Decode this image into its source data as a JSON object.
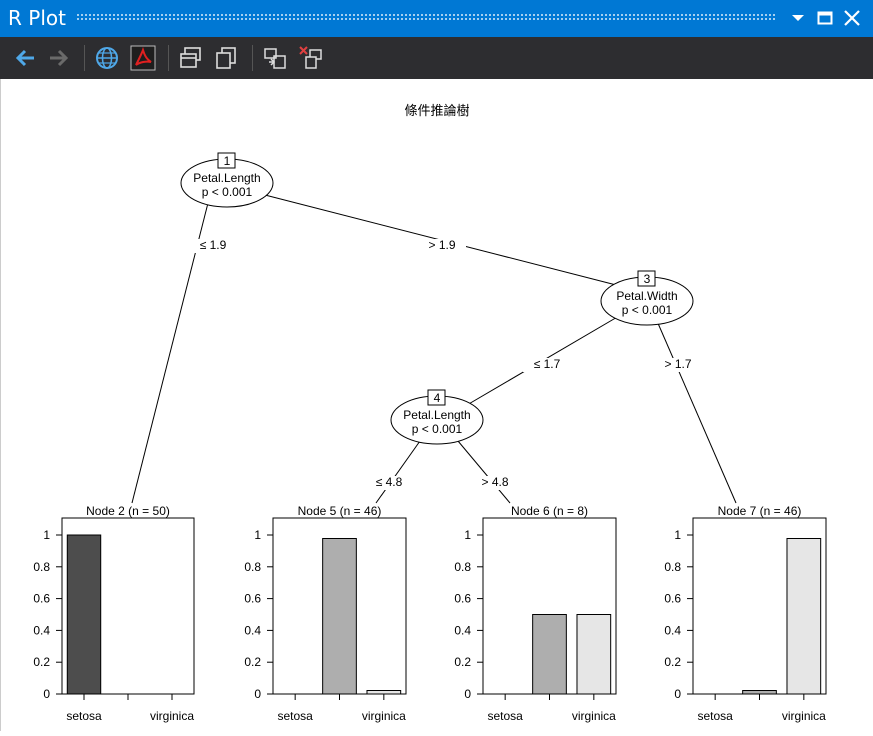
{
  "window": {
    "title": "R Plot"
  },
  "toolbar": {
    "buttons": [
      {
        "name": "back-button",
        "icon": "arrow-left-icon"
      },
      {
        "name": "forward-button",
        "icon": "arrow-right-icon"
      },
      {
        "name": "open-browser-button",
        "icon": "globe-icon"
      },
      {
        "name": "export-pdf-button",
        "icon": "pdf-icon"
      },
      {
        "name": "copy-plot-button",
        "icon": "copy-window-icon"
      },
      {
        "name": "clone-plot-button",
        "icon": "duplicate-icon"
      },
      {
        "name": "copy-to-history-button",
        "icon": "move-icon"
      },
      {
        "name": "clear-plot-button",
        "icon": "clear-icon"
      }
    ]
  },
  "colors": {
    "titlebar": "#0078d4",
    "toolbar": "#2d2d30",
    "setosa": "#4d4d4d",
    "versicolor": "#aeaeae",
    "virginica": "#e6e6e6"
  },
  "chart_data": {
    "type": "tree",
    "title": "條件推論樹",
    "inner_nodes": [
      {
        "id": "1",
        "label": "1",
        "variable": "Petal.Length",
        "pvalue": "p < 0.001"
      },
      {
        "id": "3",
        "label": "3",
        "variable": "Petal.Width",
        "pvalue": "p < 0.001"
      },
      {
        "id": "4",
        "label": "4",
        "variable": "Petal.Length",
        "pvalue": "p < 0.001"
      }
    ],
    "edges": [
      {
        "from": "1",
        "to": "2",
        "label": "≤ 1.9"
      },
      {
        "from": "1",
        "to": "3",
        "label": "> 1.9"
      },
      {
        "from": "3",
        "to": "4",
        "label": "≤ 1.7"
      },
      {
        "from": "3",
        "to": "7",
        "label": "> 1.7"
      },
      {
        "from": "4",
        "to": "5",
        "label": "≤ 4.8"
      },
      {
        "from": "4",
        "to": "6",
        "label": "> 4.8"
      }
    ],
    "terminal_nodes": [
      {
        "id": "2",
        "title": "Node 2 (n = 50)",
        "values": [
          1,
          0,
          0
        ]
      },
      {
        "id": "5",
        "title": "Node 5 (n = 46)",
        "values": [
          0,
          0.978,
          0.022
        ]
      },
      {
        "id": "6",
        "title": "Node 6 (n = 8)",
        "values": [
          0,
          0.5,
          0.5
        ]
      },
      {
        "id": "7",
        "title": "Node 7 (n = 46)",
        "values": [
          0,
          0.022,
          0.978
        ]
      }
    ],
    "x_tick_labels": [
      "setosa",
      "virginica"
    ],
    "y_ticks": [
      0,
      0.2,
      0.4,
      0.6,
      0.8,
      1
    ],
    "ylim": [
      0,
      1
    ]
  }
}
